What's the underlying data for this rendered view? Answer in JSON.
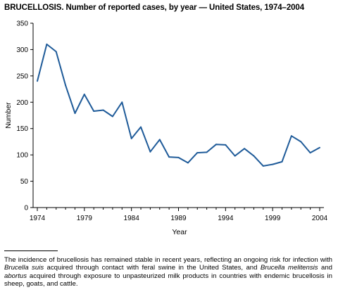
{
  "title": "BRUCELLOSIS. Number of reported cases, by year — United States, 1974–2004",
  "chart_data": {
    "type": "line",
    "title": "BRUCELLOSIS. Number of reported cases, by year — United States, 1974–2004",
    "xlabel": "Year",
    "ylabel": "Number",
    "xlim": [
      1974,
      2004
    ],
    "ylim": [
      0,
      350
    ],
    "xticks": [
      1974,
      1979,
      1984,
      1989,
      1994,
      1999,
      2004
    ],
    "yticks": [
      0,
      50,
      100,
      150,
      200,
      250,
      300,
      350
    ],
    "grid": false,
    "line_color": "#1f5b99",
    "x": [
      1974,
      1975,
      1976,
      1977,
      1978,
      1979,
      1980,
      1981,
      1982,
      1983,
      1984,
      1985,
      1986,
      1987,
      1988,
      1989,
      1990,
      1991,
      1992,
      1993,
      1994,
      1995,
      1996,
      1997,
      1998,
      1999,
      2000,
      2001,
      2002,
      2003,
      2004
    ],
    "series": [
      {
        "values": [
          240,
          310,
          296,
          232,
          179,
          215,
          183,
          185,
          173,
          200,
          131,
          153,
          106,
          129,
          96,
          95,
          85,
          104,
          105,
          120,
          119,
          98,
          112,
          98,
          79,
          82,
          87,
          136,
          125,
          104,
          114
        ]
      }
    ]
  },
  "footnote": {
    "parts": [
      {
        "text": "The incidence of brucellosis has remained stable in recent years, reflecting an ongoing risk for infection with ",
        "italic": false
      },
      {
        "text": "Brucella suis",
        "italic": true
      },
      {
        "text": " acquired through contact with feral swine in the United States, and ",
        "italic": false
      },
      {
        "text": "Brucella melitensis",
        "italic": true
      },
      {
        "text": " and ",
        "italic": false
      },
      {
        "text": "abortus",
        "italic": true
      },
      {
        "text": " acquired through exposure to unpasteurized milk products in countries with endemic brucellosis in sheep, goats, and cattle.",
        "italic": false
      }
    ]
  }
}
